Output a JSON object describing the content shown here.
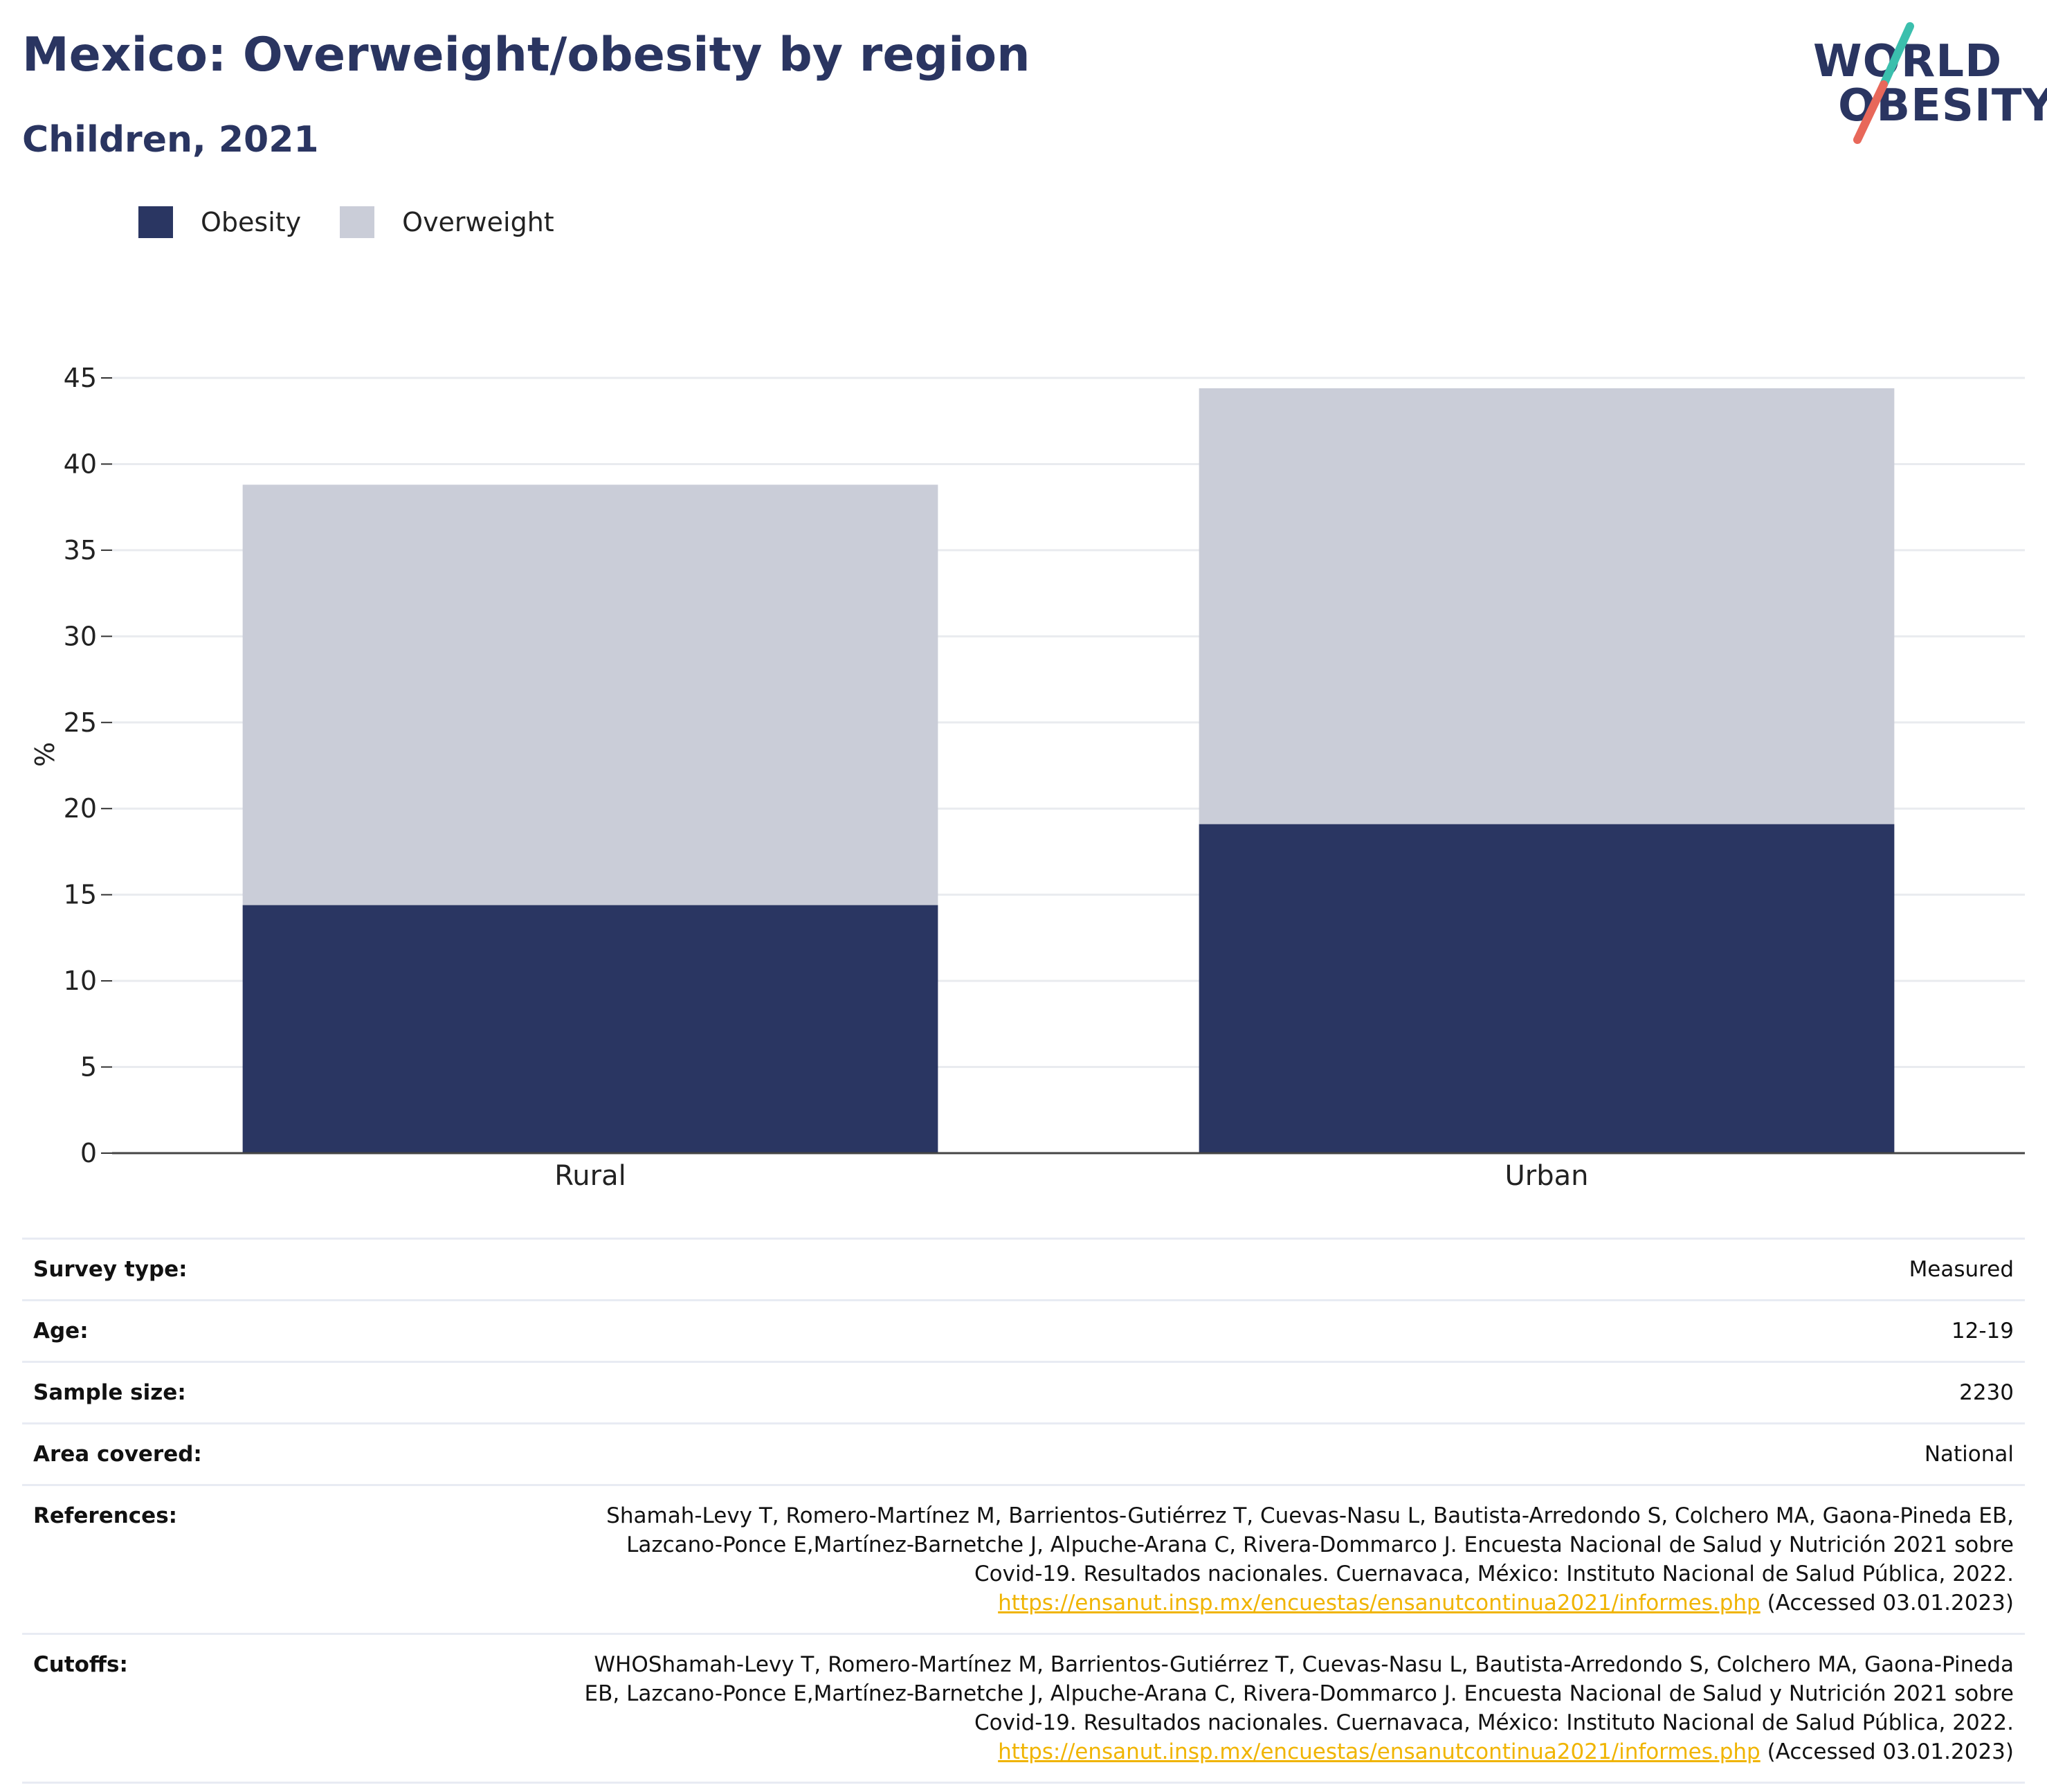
{
  "header": {
    "title": "Mexico: Overweight/obesity by region",
    "subtitle": "Children, 2021"
  },
  "logo": {
    "line1": "WORLD",
    "line2": "OBESITY",
    "colors": {
      "navy": "#2a3561",
      "teal": "#3bbfad",
      "coral": "#e8685a"
    }
  },
  "legend": [
    {
      "label": "Obesity",
      "color": "#2a3662"
    },
    {
      "label": "Overweight",
      "color": "#cacdd8"
    }
  ],
  "chart_data": {
    "type": "bar",
    "stacked": true,
    "categories": [
      "Rural",
      "Urban"
    ],
    "series": [
      {
        "name": "Obesity",
        "values": [
          14.4,
          19.1
        ],
        "color": "#2a3662"
      },
      {
        "name": "Overweight",
        "values": [
          24.4,
          25.3
        ],
        "color": "#cacdd8"
      }
    ],
    "ylabel": "%",
    "ylim": [
      0,
      45
    ],
    "yticks": [
      0,
      5,
      10,
      15,
      20,
      25,
      30,
      35,
      40,
      45
    ],
    "grid": true,
    "legend_position": "top-left"
  },
  "meta": [
    {
      "label": "Survey type:",
      "value": "Measured"
    },
    {
      "label": "Age:",
      "value": "12-19"
    },
    {
      "label": "Sample size:",
      "value": "2230"
    },
    {
      "label": "Area covered:",
      "value": "National"
    },
    {
      "label": "References:",
      "lines": [
        "Shamah-Levy T, Romero-Martínez M, Barrientos-Gutiérrez T, Cuevas-Nasu L, Bautista-Arredondo S, Colchero MA, Gaona-Pineda EB,",
        "Lazcano-Ponce E,Martínez-Barnetche J, Alpuche-Arana C, Rivera-Dommarco J. Encuesta Nacional de Salud y Nutrición 2021 sobre",
        "Covid-19. Resultados nacionales. Cuernavaca, México: Instituto Nacional de Salud Pública, 2022."
      ],
      "link": "https://ensanut.insp.mx/encuestas/ensanutcontinua2021/informes.php",
      "accessed": " (Accessed 03.01.2023)"
    },
    {
      "label": "Cutoffs:",
      "lines": [
        "WHOShamah-Levy T, Romero-Martínez M, Barrientos-Gutiérrez T, Cuevas-Nasu L, Bautista-Arredondo S, Colchero MA, Gaona-Pineda",
        "EB, Lazcano-Ponce E,Martínez-Barnetche J, Alpuche-Arana C, Rivera-Dommarco J. Encuesta Nacional de Salud y Nutrición 2021 sobre",
        "Covid-19. Resultados nacionales. Cuernavaca, México: Instituto Nacional de Salud Pública, 2022."
      ],
      "link": "https://ensanut.insp.mx/encuestas/ensanutcontinua2021/informes.php",
      "accessed": " (Accessed 03.01.2023)"
    }
  ]
}
